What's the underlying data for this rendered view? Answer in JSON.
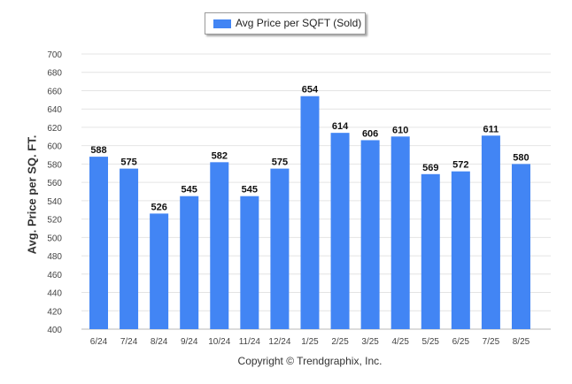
{
  "legend": {
    "label": "Avg Price per SQFT (Sold)"
  },
  "footer": {
    "copyright": "Copyright © Trendgraphix, Inc."
  },
  "chart_data": {
    "type": "bar",
    "categories": [
      "6/24",
      "7/24",
      "8/24",
      "9/24",
      "10/24",
      "11/24",
      "12/24",
      "1/25",
      "2/25",
      "3/25",
      "4/25",
      "5/25",
      "6/25",
      "7/25",
      "8/25"
    ],
    "series": [
      {
        "name": "Avg Price per SQFT (Sold)",
        "values": [
          588,
          575,
          526,
          545,
          582,
          545,
          575,
          654,
          614,
          606,
          610,
          569,
          572,
          611,
          580
        ]
      }
    ],
    "ylabel": "Avg. Price per SQ. FT.",
    "ylim": [
      400,
      700
    ],
    "yticks": [
      400,
      420,
      440,
      460,
      480,
      500,
      520,
      540,
      560,
      580,
      600,
      620,
      640,
      660,
      680,
      700
    ],
    "color": "#4285f4",
    "grid": true,
    "legend_position": "top-center"
  }
}
